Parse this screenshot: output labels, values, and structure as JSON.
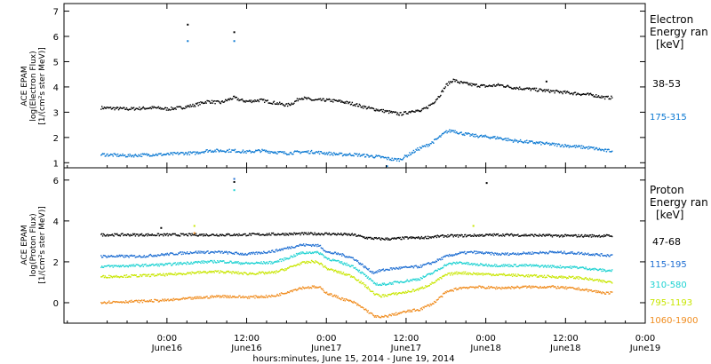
{
  "chart_data": [
    {
      "type": "scatter",
      "panel": "electron",
      "ylabel_lines": [
        "ACE EPAM",
        "log(Electron Flux)",
        "[1/(cm²s ster MeV)]"
      ],
      "ylim": [
        0.8,
        7.3
      ],
      "yticks": [
        1,
        2,
        3,
        4,
        5,
        6,
        7
      ],
      "legend_title": [
        "Electron",
        "Energy ran",
        "[keV]"
      ],
      "series": [
        {
          "name": "38-53",
          "color": "#000000",
          "points": [
            [
              -10,
              3.2
            ],
            [
              -6,
              3.15
            ],
            [
              -2,
              3.2
            ],
            [
              0,
              3.15
            ],
            [
              2,
              3.2
            ],
            [
              4,
              3.3
            ],
            [
              6,
              3.45
            ],
            [
              8,
              3.4
            ],
            [
              10,
              3.6
            ],
            [
              11,
              3.5
            ],
            [
              12,
              3.45
            ],
            [
              14,
              3.5
            ],
            [
              16,
              3.4
            ],
            [
              18,
              3.3
            ],
            [
              19,
              3.4
            ],
            [
              20,
              3.6
            ],
            [
              21,
              3.55
            ],
            [
              22,
              3.5
            ],
            [
              24,
              3.5
            ],
            [
              26,
              3.45
            ],
            [
              28,
              3.35
            ],
            [
              30,
              3.2
            ],
            [
              31,
              3.15
            ],
            [
              32,
              3.1
            ],
            [
              33,
              3.05
            ],
            [
              34,
              3.0
            ],
            [
              35,
              2.95
            ],
            [
              36,
              3.0
            ],
            [
              37,
              3.1
            ],
            [
              38,
              3.05
            ],
            [
              39,
              3.2
            ],
            [
              40,
              3.4
            ],
            [
              41,
              3.7
            ],
            [
              42,
              4.1
            ],
            [
              43,
              4.3
            ],
            [
              44,
              4.2
            ],
            [
              46,
              4.1
            ],
            [
              48,
              4.05
            ],
            [
              50,
              4.1
            ],
            [
              52,
              4.0
            ],
            [
              54,
              3.95
            ],
            [
              56,
              3.9
            ],
            [
              58,
              3.85
            ],
            [
              60,
              3.8
            ],
            [
              62,
              3.75
            ],
            [
              64,
              3.7
            ],
            [
              66,
              3.6
            ],
            [
              67,
              3.6
            ]
          ],
          "outliers": [
            [
              3,
              6.5
            ],
            [
              10,
              6.2
            ],
            [
              57,
              4.25
            ]
          ]
        },
        {
          "name": "175-315",
          "color": "#0a78d2",
          "points": [
            [
              -10,
              1.35
            ],
            [
              -6,
              1.3
            ],
            [
              -2,
              1.35
            ],
            [
              0,
              1.35
            ],
            [
              2,
              1.4
            ],
            [
              4,
              1.4
            ],
            [
              6,
              1.5
            ],
            [
              8,
              1.5
            ],
            [
              10,
              1.5
            ],
            [
              12,
              1.45
            ],
            [
              14,
              1.5
            ],
            [
              16,
              1.45
            ],
            [
              18,
              1.4
            ],
            [
              20,
              1.45
            ],
            [
              22,
              1.45
            ],
            [
              24,
              1.4
            ],
            [
              26,
              1.35
            ],
            [
              28,
              1.35
            ],
            [
              30,
              1.3
            ],
            [
              32,
              1.25
            ],
            [
              33,
              1.2
            ],
            [
              34,
              1.15
            ],
            [
              35,
              1.15
            ],
            [
              36,
              1.3
            ],
            [
              37,
              1.45
            ],
            [
              38,
              1.6
            ],
            [
              39,
              1.7
            ],
            [
              40,
              1.85
            ],
            [
              41,
              2.05
            ],
            [
              42,
              2.25
            ],
            [
              43,
              2.3
            ],
            [
              44,
              2.2
            ],
            [
              46,
              2.1
            ],
            [
              48,
              2.05
            ],
            [
              50,
              2.0
            ],
            [
              52,
              1.9
            ],
            [
              54,
              1.85
            ],
            [
              56,
              1.8
            ],
            [
              58,
              1.75
            ],
            [
              60,
              1.7
            ],
            [
              62,
              1.65
            ],
            [
              64,
              1.6
            ],
            [
              66,
              1.5
            ],
            [
              67,
              1.5
            ]
          ],
          "outliers": [
            [
              3,
              5.85
            ],
            [
              10,
              5.85
            ],
            [
              33,
              0.9
            ]
          ]
        }
      ]
    },
    {
      "type": "scatter",
      "panel": "proton",
      "ylabel_lines": [
        "ACE EPAM",
        "log(Proton Flux)",
        "[1/(cm²s ster MeV)]"
      ],
      "ylim": [
        -1.0,
        6.6
      ],
      "yticks": [
        0,
        2,
        4,
        6
      ],
      "legend_title": [
        "Proton",
        "Energy ran",
        "[keV]"
      ],
      "series": [
        {
          "name": "47-68",
          "color": "#000000",
          "points": [
            [
              -10,
              3.35
            ],
            [
              0,
              3.35
            ],
            [
              10,
              3.35
            ],
            [
              20,
              3.4
            ],
            [
              24,
              3.4
            ],
            [
              28,
              3.35
            ],
            [
              30,
              3.2
            ],
            [
              32,
              3.15
            ],
            [
              34,
              3.15
            ],
            [
              36,
              3.2
            ],
            [
              38,
              3.2
            ],
            [
              40,
              3.25
            ],
            [
              42,
              3.3
            ],
            [
              44,
              3.3
            ],
            [
              50,
              3.35
            ],
            [
              60,
              3.3
            ],
            [
              67,
              3.3
            ]
          ],
          "outliers": [
            [
              -1,
              3.7
            ],
            [
              10,
              5.95
            ],
            [
              48,
              5.9
            ]
          ]
        },
        {
          "name": "115-195",
          "color": "#1e6ed2",
          "points": [
            [
              -10,
              2.3
            ],
            [
              -4,
              2.3
            ],
            [
              0,
              2.4
            ],
            [
              4,
              2.5
            ],
            [
              8,
              2.5
            ],
            [
              12,
              2.4
            ],
            [
              16,
              2.55
            ],
            [
              18,
              2.7
            ],
            [
              20,
              2.85
            ],
            [
              22,
              2.85
            ],
            [
              23,
              2.8
            ],
            [
              24,
              2.5
            ],
            [
              26,
              2.4
            ],
            [
              28,
              2.2
            ],
            [
              30,
              1.7
            ],
            [
              31,
              1.5
            ],
            [
              32,
              1.6
            ],
            [
              34,
              1.7
            ],
            [
              36,
              1.75
            ],
            [
              38,
              1.8
            ],
            [
              40,
              2.0
            ],
            [
              42,
              2.3
            ],
            [
              44,
              2.45
            ],
            [
              46,
              2.5
            ],
            [
              50,
              2.4
            ],
            [
              54,
              2.45
            ],
            [
              58,
              2.5
            ],
            [
              62,
              2.45
            ],
            [
              66,
              2.35
            ],
            [
              67,
              2.35
            ]
          ],
          "outliers": [
            [
              10,
              6.1
            ]
          ]
        },
        {
          "name": "310-580",
          "color": "#1ed2d2",
          "points": [
            [
              -10,
              1.8
            ],
            [
              -4,
              1.85
            ],
            [
              0,
              1.9
            ],
            [
              4,
              2.0
            ],
            [
              8,
              2.05
            ],
            [
              12,
              1.95
            ],
            [
              16,
              2.0
            ],
            [
              18,
              2.2
            ],
            [
              20,
              2.45
            ],
            [
              22,
              2.5
            ],
            [
              23,
              2.45
            ],
            [
              24,
              2.2
            ],
            [
              26,
              2.0
            ],
            [
              28,
              1.8
            ],
            [
              30,
              1.3
            ],
            [
              31,
              1.0
            ],
            [
              32,
              0.9
            ],
            [
              34,
              1.0
            ],
            [
              36,
              1.1
            ],
            [
              38,
              1.2
            ],
            [
              40,
              1.5
            ],
            [
              42,
              1.9
            ],
            [
              44,
              2.0
            ],
            [
              46,
              1.9
            ],
            [
              50,
              1.85
            ],
            [
              54,
              1.85
            ],
            [
              58,
              1.8
            ],
            [
              62,
              1.75
            ],
            [
              66,
              1.6
            ],
            [
              67,
              1.6
            ]
          ],
          "outliers": [
            [
              10,
              5.55
            ]
          ]
        },
        {
          "name": "795-1193",
          "color": "#c8e600",
          "points": [
            [
              -10,
              1.3
            ],
            [
              -4,
              1.35
            ],
            [
              0,
              1.4
            ],
            [
              4,
              1.5
            ],
            [
              8,
              1.55
            ],
            [
              12,
              1.45
            ],
            [
              16,
              1.5
            ],
            [
              18,
              1.7
            ],
            [
              20,
              1.95
            ],
            [
              22,
              2.05
            ],
            [
              23,
              1.95
            ],
            [
              24,
              1.7
            ],
            [
              26,
              1.5
            ],
            [
              28,
              1.3
            ],
            [
              30,
              0.8
            ],
            [
              31,
              0.5
            ],
            [
              32,
              0.35
            ],
            [
              34,
              0.45
            ],
            [
              36,
              0.55
            ],
            [
              38,
              0.7
            ],
            [
              40,
              1.0
            ],
            [
              42,
              1.4
            ],
            [
              44,
              1.5
            ],
            [
              46,
              1.45
            ],
            [
              50,
              1.4
            ],
            [
              54,
              1.35
            ],
            [
              58,
              1.3
            ],
            [
              62,
              1.25
            ],
            [
              66,
              1.05
            ],
            [
              67,
              1.05
            ]
          ],
          "outliers": [
            [
              4,
              3.8
            ],
            [
              46,
              3.8
            ]
          ]
        },
        {
          "name": "1060-1900",
          "color": "#f08c1e",
          "points": [
            [
              -10,
              0.05
            ],
            [
              -4,
              0.1
            ],
            [
              0,
              0.15
            ],
            [
              4,
              0.25
            ],
            [
              8,
              0.35
            ],
            [
              12,
              0.3
            ],
            [
              16,
              0.35
            ],
            [
              18,
              0.55
            ],
            [
              20,
              0.75
            ],
            [
              22,
              0.8
            ],
            [
              23,
              0.75
            ],
            [
              24,
              0.5
            ],
            [
              26,
              0.25
            ],
            [
              28,
              0.05
            ],
            [
              30,
              -0.35
            ],
            [
              31,
              -0.6
            ],
            [
              32,
              -0.7
            ],
            [
              34,
              -0.55
            ],
            [
              36,
              -0.4
            ],
            [
              38,
              -0.3
            ],
            [
              40,
              0.0
            ],
            [
              42,
              0.55
            ],
            [
              44,
              0.75
            ],
            [
              46,
              0.8
            ],
            [
              50,
              0.75
            ],
            [
              54,
              0.8
            ],
            [
              58,
              0.8
            ],
            [
              62,
              0.7
            ],
            [
              66,
              0.5
            ],
            [
              67,
              0.5
            ]
          ],
          "outliers": [
            [
              4,
              3.45
            ]
          ]
        }
      ]
    }
  ],
  "x_axis": {
    "xlim": [
      -15.5,
      72.0
    ],
    "ticks": [
      {
        "hours": 0,
        "time": "0:00",
        "date": "June16"
      },
      {
        "hours": 12,
        "time": "12:00",
        "date": "June16"
      },
      {
        "hours": 24,
        "time": "0:00",
        "date": "June17"
      },
      {
        "hours": 36,
        "time": "12:00",
        "date": "June17"
      },
      {
        "hours": 48,
        "time": "0:00",
        "date": "June18"
      },
      {
        "hours": 60,
        "time": "12:00",
        "date": "June18"
      },
      {
        "hours": 72,
        "time": "0:00",
        "date": "June19"
      }
    ],
    "xlabel": "hours:minutes, June 15, 2014 - June 19, 2014"
  }
}
